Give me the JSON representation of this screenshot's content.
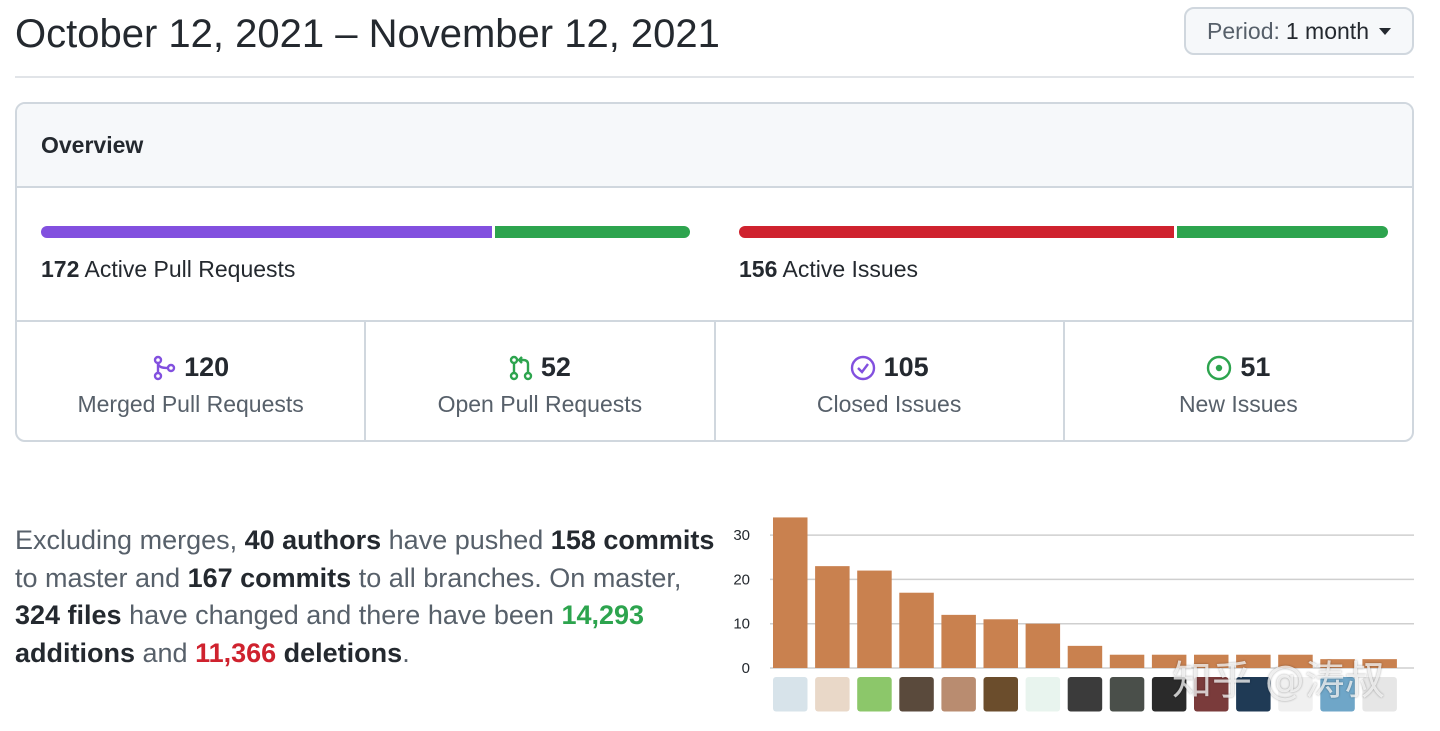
{
  "header": {
    "date_range": "October 12, 2021 – November 12, 2021",
    "period_label": "Period:",
    "period_value": "1 month"
  },
  "overview": {
    "title": "Overview",
    "pull_requests": {
      "count": "172",
      "label": "Active Pull Requests",
      "merged_fraction": 0.698,
      "colors": [
        "#8250df",
        "#2da44e"
      ]
    },
    "issues": {
      "count": "156",
      "label": "Active Issues",
      "closed_fraction": 0.673,
      "colors": [
        "#cf222e",
        "#2da44e"
      ]
    },
    "stats": [
      {
        "value": "120",
        "label": "Merged Pull Requests",
        "icon": "git-merge-icon",
        "color": "#8250df"
      },
      {
        "value": "52",
        "label": "Open Pull Requests",
        "icon": "git-pull-request-icon",
        "color": "#2da44e"
      },
      {
        "value": "105",
        "label": "Closed Issues",
        "icon": "issue-closed-icon",
        "color": "#8250df"
      },
      {
        "value": "51",
        "label": "New Issues",
        "icon": "issue-opened-icon",
        "color": "#2da44e"
      }
    ]
  },
  "summary": {
    "t1": "Excluding merges, ",
    "authors": "40 authors",
    "t2": " have pushed ",
    "commits_master": "158 commits",
    "t3": " to master and ",
    "commits_all": "167 commits",
    "t4": " to all branches. On master, ",
    "files": "324 files",
    "t5": " have changed and there have been ",
    "additions_num": "14,293",
    "additions_word": " additions",
    "t6": " and ",
    "deletions_num": "11,366",
    "deletions_word": " deletions",
    "t7": "."
  },
  "chart_data": {
    "type": "bar",
    "values": [
      34,
      23,
      22,
      17,
      12,
      11,
      10,
      5,
      3,
      3,
      3,
      3,
      3,
      2,
      2
    ],
    "ylim": [
      0,
      35
    ],
    "yticks": [
      "0",
      "10",
      "20",
      "30"
    ],
    "grid": true,
    "bar_color": "#c9814f"
  },
  "watermark": "知乎 @涛叔"
}
